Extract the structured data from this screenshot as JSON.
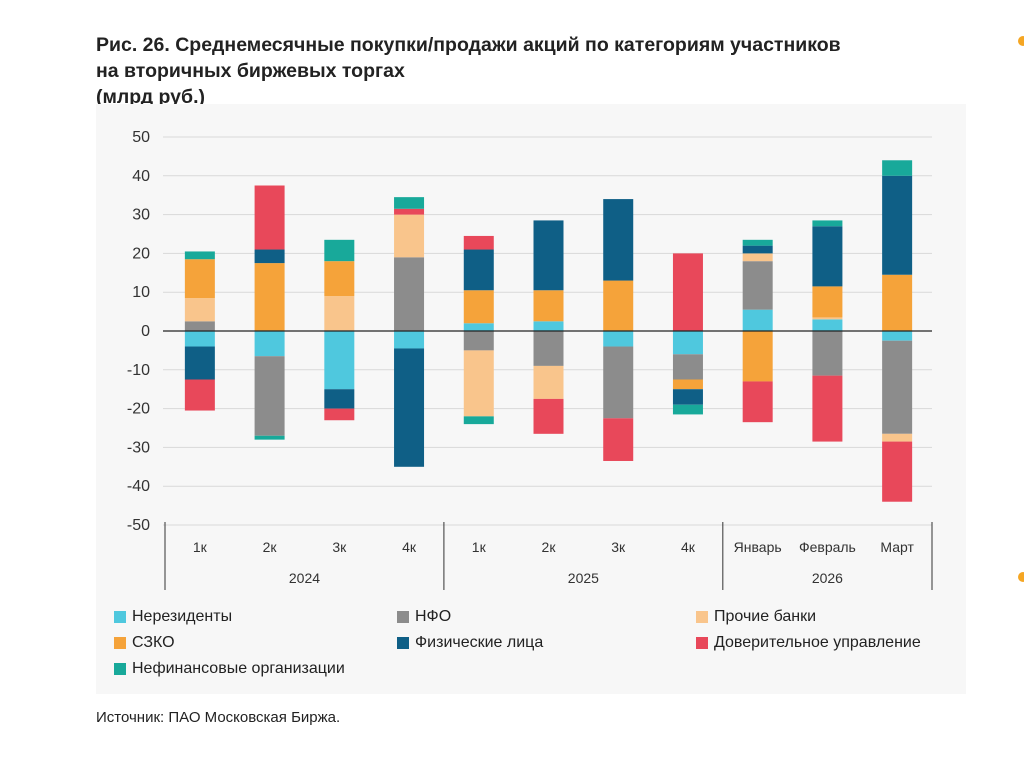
{
  "title": {
    "line1": "Рис. 26. Среднемесячные покупки/продажи акций по категориям участников",
    "line2": "на вторичных биржевых торгах",
    "line3": "(млрд руб.)"
  },
  "source": "Источник: ПАО Московская Биржа.",
  "chart_data": {
    "type": "bar",
    "stacked": true,
    "ylim": [
      -50,
      50
    ],
    "yticks": [
      50,
      40,
      30,
      20,
      10,
      0,
      -10,
      -20,
      -30,
      -40,
      -50
    ],
    "categories": [
      "1к",
      "2к",
      "3к",
      "4к",
      "1к",
      "2к",
      "3к",
      "4к",
      "Январь",
      "Февраль",
      "Март"
    ],
    "groups": [
      {
        "label": "2024",
        "count": 4
      },
      {
        "label": "2025",
        "count": 4
      },
      {
        "label": "2026",
        "count": 3
      }
    ],
    "series": [
      {
        "name": "Нерезиденты",
        "color": "#4fc8de",
        "values": [
          -4,
          -6.5,
          -15,
          -4.5,
          2,
          2.5,
          -4,
          -6,
          5.5,
          3,
          -2.5
        ]
      },
      {
        "name": "НФО",
        "color": "#8c8c8c",
        "values": [
          2.5,
          -20.5,
          0,
          19,
          -5,
          -9,
          -18.5,
          -6.5,
          12.5,
          -11.5,
          -24
        ]
      },
      {
        "name": "Прочие банки",
        "color": "#f9c58c",
        "values": [
          6,
          0,
          9,
          11,
          -17,
          -8.5,
          0,
          0,
          2,
          0.5,
          -2
        ]
      },
      {
        "name": "СЗКО",
        "color": "#f5a33a",
        "values": [
          10,
          17.5,
          9,
          0,
          8.5,
          8,
          13,
          -2.5,
          -13,
          8,
          14.5
        ]
      },
      {
        "name": "Физические лица",
        "color": "#0f5f86",
        "values": [
          -8.5,
          3.5,
          -5,
          -30.5,
          10.5,
          18,
          21,
          -4,
          2,
          15.5,
          25.5
        ]
      },
      {
        "name": "Доверительное управление",
        "color": "#e8485a",
        "values": [
          -8,
          16.5,
          -3,
          1.5,
          3.5,
          -9,
          -11,
          20,
          -10.5,
          -17,
          -15.5
        ]
      },
      {
        "name": "Нефинансовые организации",
        "color": "#18a99a",
        "values": [
          2,
          -1,
          5.5,
          3,
          -2,
          0,
          0,
          -2.5,
          1.5,
          1.5,
          4
        ]
      }
    ]
  }
}
